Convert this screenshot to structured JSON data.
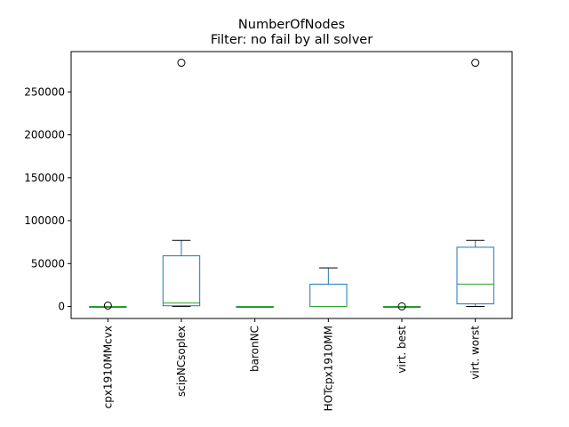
{
  "chart_data": {
    "type": "box",
    "title": "NumberOfNodes",
    "subtitle": "Filter: no fail by all solver",
    "xlabel": "",
    "ylabel": "",
    "ylim": [
      -14000,
      297000
    ],
    "yticks": [
      0,
      50000,
      100000,
      150000,
      200000,
      250000
    ],
    "ytick_labels": [
      "0",
      "50000",
      "100000",
      "150000",
      "200000",
      "250000"
    ],
    "categories": [
      "cpx1910MMcvx",
      "scipNCsoplex",
      "baronNC",
      "HOTcpx1910MM",
      "virt. best",
      "virt. worst"
    ],
    "boxes": [
      {
        "category": "cpx1910MMcvx",
        "whisker_low": 0,
        "q1": 0,
        "median": 0,
        "q3": 0,
        "whisker_high": 0,
        "fliers": [
          1000
        ]
      },
      {
        "category": "scipNCsoplex",
        "whisker_low": 0,
        "q1": 800,
        "median": 4000,
        "q3": 59000,
        "whisker_high": 77000,
        "fliers": [
          284000
        ]
      },
      {
        "category": "baronNC",
        "whisker_low": 0,
        "q1": 0,
        "median": 0,
        "q3": 0,
        "whisker_high": 0,
        "fliers": []
      },
      {
        "category": "HOTcpx1910MM",
        "whisker_low": 0,
        "q1": 0,
        "median": 0,
        "q3": 26000,
        "whisker_high": 45000,
        "fliers": []
      },
      {
        "category": "virt. best",
        "whisker_low": 0,
        "q1": 0,
        "median": 0,
        "q3": 0,
        "whisker_high": 0,
        "fliers": [
          100
        ]
      },
      {
        "category": "virt. worst",
        "whisker_low": 0,
        "q1": 3000,
        "median": 26000,
        "q3": 69000,
        "whisker_high": 77000,
        "fliers": [
          284000
        ]
      }
    ],
    "grid": false,
    "colors": {
      "box": "#1f77b4",
      "median": "#2ca02c",
      "whisker": "#000000",
      "flier": "#000000"
    }
  }
}
